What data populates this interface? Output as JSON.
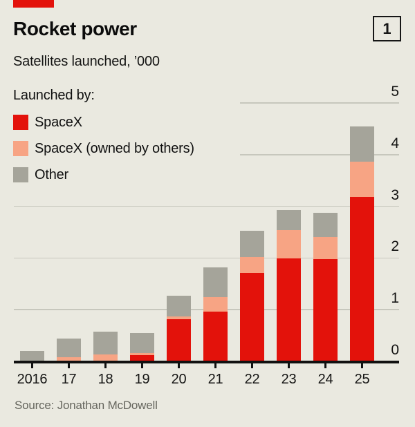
{
  "header": {
    "title": "Rocket power",
    "subtitle": "Satellites launched, ’000",
    "index_label": "1",
    "brand_color": "#e3120b"
  },
  "legend": {
    "title": "Launched by:",
    "items": [
      {
        "label": "SpaceX",
        "color": "#e3120b"
      },
      {
        "label": "SpaceX (owned by others)",
        "color": "#f7a484"
      },
      {
        "label": "Other",
        "color": "#a5a49a"
      }
    ]
  },
  "chart_data": {
    "type": "bar",
    "stacked": true,
    "title": "Rocket power",
    "subtitle": "Satellites launched, ’000",
    "categories": [
      "2016",
      "17",
      "18",
      "19",
      "20",
      "21",
      "22",
      "23",
      "24",
      "25"
    ],
    "series": [
      {
        "name": "SpaceX",
        "color": "#e3120b",
        "values": [
          0,
          0,
          0,
          0.12,
          0.82,
          0.96,
          1.71,
          1.99,
          1.98,
          3.18
        ]
      },
      {
        "name": "SpaceX (owned by others)",
        "color": "#f7a484",
        "values": [
          0,
          0.08,
          0.13,
          0.04,
          0.05,
          0.29,
          0.31,
          0.55,
          0.42,
          0.68
        ]
      },
      {
        "name": "Other",
        "color": "#a5a49a",
        "values": [
          0.2,
          0.36,
          0.45,
          0.39,
          0.4,
          0.57,
          0.51,
          0.39,
          0.47,
          0.68
        ]
      }
    ],
    "ylabel": "",
    "xlabel": "",
    "ylim": [
      0,
      5
    ],
    "yticks": [
      0,
      1,
      2,
      3,
      4,
      5
    ],
    "grid": true,
    "axis_side": "right",
    "legend_position": "top-left",
    "gridline_color": "#c7c7bd"
  },
  "source": "Source: Jonathan McDowell"
}
